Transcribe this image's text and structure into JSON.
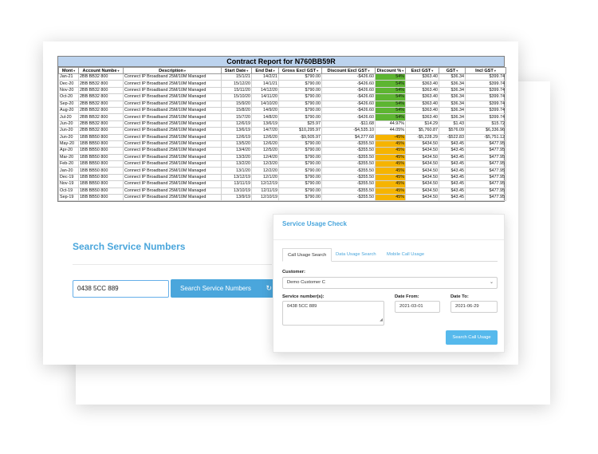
{
  "report": {
    "title": "Contract Report for N760BB59R",
    "columns": [
      "Mont",
      "Account Numbe",
      "Description",
      "Start Date",
      "End Dat",
      "Gross Excl GST",
      "Discount Excl GST",
      "Discount %",
      "Excl GST",
      "GST",
      "Incl GST"
    ],
    "rows": [
      [
        "Jan-21",
        "2BB BB32 800",
        "Connect IP Broadband  25M/10M Managed",
        "15/1/21",
        "14/2/21",
        "$790.00",
        "-$426.60",
        "54%",
        "$363.40",
        "$36.34",
        "$399.74",
        "green"
      ],
      [
        "Dec-20",
        "2BB BB32 800",
        "Connect IP Broadband  25M/10M Managed",
        "15/12/20",
        "14/1/21",
        "$790.00",
        "-$426.60",
        "54%",
        "$363.40",
        "$36.34",
        "$399.74",
        "green"
      ],
      [
        "Nov-20",
        "2BB BB32 800",
        "Connect IP Broadband  25M/10M Managed",
        "15/11/20",
        "14/12/20",
        "$790.00",
        "-$426.60",
        "54%",
        "$363.40",
        "$36.34",
        "$399.74",
        "green"
      ],
      [
        "Oct-20",
        "2BB BB32 800",
        "Connect IP Broadband  25M/10M Managed",
        "15/10/20",
        "14/11/20",
        "$790.00",
        "-$426.60",
        "54%",
        "$363.40",
        "$36.34",
        "$399.74",
        "green"
      ],
      [
        "Sep-20",
        "2BB BB32 800",
        "Connect IP Broadband  25M/10M Managed",
        "15/9/20",
        "14/10/20",
        "$790.00",
        "-$426.60",
        "54%",
        "$363.40",
        "$36.34",
        "$399.74",
        "green"
      ],
      [
        "Aug-20",
        "2BB BB32 800",
        "Connect IP Broadband  25M/10M Managed",
        "15/8/20",
        "14/9/20",
        "$790.00",
        "-$426.60",
        "54%",
        "$363.40",
        "$36.34",
        "$399.74",
        "green"
      ],
      [
        "Jul-20",
        "2BB BB32 800",
        "Connect IP Broadband  25M/10M Managed",
        "15/7/20",
        "14/8/20",
        "$790.00",
        "-$426.60",
        "54%",
        "$363.40",
        "$36.34",
        "$399.74",
        "green"
      ],
      [
        "Jun-20",
        "2BB BB32 800",
        "Connect IP Broadband  25M/10M Managed",
        "12/6/19",
        "13/6/19",
        "$25.97",
        "-$11.68",
        "44.97%",
        "$14.29",
        "$1.43",
        "$15.72",
        "plain"
      ],
      [
        "Jun-20",
        "2BB BB32 800",
        "Connect IP Broadband  25M/10M Managed",
        "13/6/19",
        "14/7/20",
        "$10,295.97",
        "-$4,535.10",
        "44.05%",
        "$5,760.87",
        "$576.09",
        "$6,336.96",
        "plain"
      ],
      [
        "Jun-20",
        "1BB BB50 800",
        "Connect IP Broadband  25M/10M Managed",
        "12/6/19",
        "12/6/20",
        "-$9,505.97",
        "$4,277.68",
        "-45%",
        "-$5,228.29",
        "-$522.83",
        "-$5,751.12",
        "orange"
      ],
      [
        "May-20",
        "1BB BB50 800",
        "Connect IP Broadband  25M/10M Managed",
        "13/5/20",
        "12/6/20",
        "$790.00",
        "-$355.50",
        "45%",
        "$434.50",
        "$43.45",
        "$477.95",
        "orange"
      ],
      [
        "Apr-20",
        "1BB BB50 800",
        "Connect IP Broadband  25M/10M Managed",
        "13/4/20",
        "12/5/20",
        "$790.00",
        "-$355.50",
        "45%",
        "$434.50",
        "$43.45",
        "$477.95",
        "orange"
      ],
      [
        "Mar-20",
        "1BB BB50 800",
        "Connect IP Broadband  25M/10M Managed",
        "13/3/20",
        "12/4/20",
        "$790.00",
        "-$355.50",
        "45%",
        "$434.50",
        "$43.45",
        "$477.95",
        "orange"
      ],
      [
        "Feb-20",
        "1BB BB50 800",
        "Connect IP Broadband  25M/10M Managed",
        "13/2/20",
        "12/3/20",
        "$790.00",
        "-$355.50",
        "45%",
        "$434.50",
        "$43.45",
        "$477.95",
        "orange"
      ],
      [
        "Jan-20",
        "1BB BB50 800",
        "Connect IP Broadband  25M/10M Managed",
        "13/1/20",
        "12/2/20",
        "$790.00",
        "-$355.50",
        "45%",
        "$434.50",
        "$43.45",
        "$477.95",
        "orange"
      ],
      [
        "Dec-19",
        "1BB BB50 800",
        "Connect IP Broadband  25M/10M Managed",
        "13/12/19",
        "12/1/20",
        "$790.00",
        "-$355.50",
        "45%",
        "$434.50",
        "$43.45",
        "$477.95",
        "orange"
      ],
      [
        "Nov-19",
        "1BB BB50 800",
        "Connect IP Broadband  25M/10M Managed",
        "13/11/19",
        "12/12/19",
        "$790.00",
        "-$355.50",
        "45%",
        "$434.50",
        "$43.45",
        "$477.95",
        "orange"
      ],
      [
        "Oct-19",
        "1BB BB50 800",
        "Connect IP Broadband  25M/10M Managed",
        "13/10/19",
        "12/11/19",
        "$790.00",
        "-$355.50",
        "45%",
        "$434.50",
        "$43.45",
        "$477.95",
        "orange"
      ],
      [
        "Sep-19",
        "1BB BB50 800",
        "Connect IP Broadband  25M/10M Managed",
        "13/9/19",
        "12/10/19",
        "$790.00",
        "-$355.50",
        "45%",
        "$434.50",
        "$43.45",
        "$477.95",
        "orange"
      ]
    ]
  },
  "search": {
    "title": "Search Service Numbers",
    "input_value": "0438 5CC 889",
    "button_label": "Search Service Numbers",
    "button_icon": "↻"
  },
  "usage": {
    "title": "Service Usage Check",
    "tabs": [
      "Call Usage Search",
      "Data Usage Search",
      "Mobile Call Usage"
    ],
    "customer_label": "Customer:",
    "customer_value": "Demo Customer C",
    "service_label": "Service number(s):",
    "service_value": "0438 5CC 889",
    "date_from_label": "Date From:",
    "date_from_value": "2021-03-01",
    "date_to_label": "Date To:",
    "date_to_value": "2021-06-29",
    "button_label": "Search Call Usage"
  },
  "colors": {
    "accent": "#4aa6dc",
    "discount_green": "#5db531",
    "discount_orange": "#f6b400",
    "report_title_bg": "#bcd3ee"
  }
}
